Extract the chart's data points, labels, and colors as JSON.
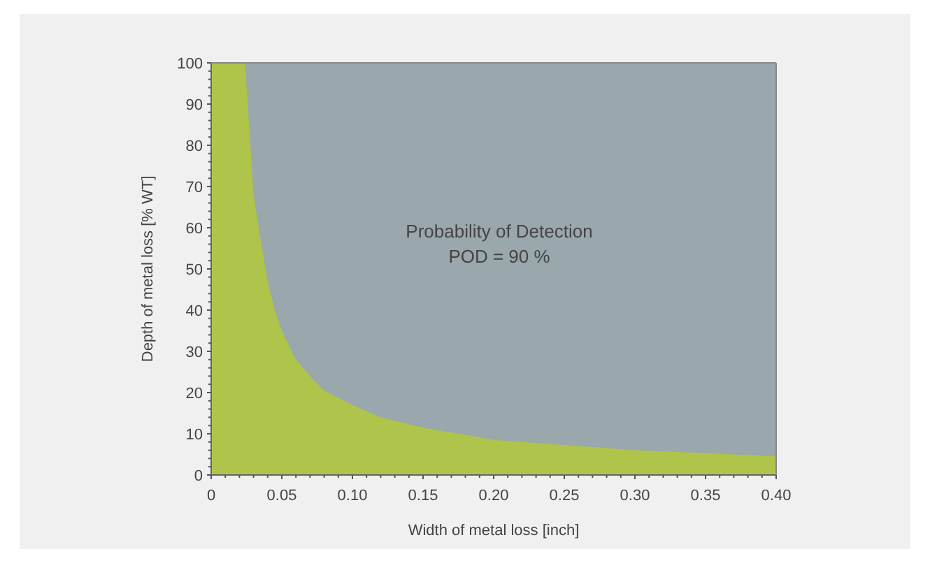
{
  "chart_data": {
    "type": "area",
    "xlabel": "Width of metal loss [inch]",
    "ylabel": "Depth of metal loss [% WT]",
    "annotations": [
      "Probability of Detection",
      "POD = 90 %"
    ],
    "x": [
      0,
      0.024,
      0.03,
      0.035,
      0.04,
      0.045,
      0.05,
      0.06,
      0.07,
      0.08,
      0.1,
      0.12,
      0.15,
      0.175,
      0.2,
      0.25,
      0.3,
      0.35,
      0.4
    ],
    "series": [
      {
        "color": "#afc44a",
        "values": [
          100,
          100,
          68,
          57,
          47,
          40,
          35,
          28,
          24,
          20.5,
          17,
          14,
          11.5,
          10,
          8.5,
          7.3,
          6,
          5.3,
          4.5
        ]
      }
    ],
    "xlim": [
      0,
      0.4
    ],
    "ylim": [
      0,
      100
    ],
    "xticks": [
      0,
      {
        "value": 0.01,
        "label": null
      },
      {
        "value": 0.02,
        "label": null
      },
      {
        "value": 0.03,
        "label": null
      },
      {
        "value": 0.04,
        "label": null
      },
      {
        "value": 0.05,
        "label": "0.05"
      },
      {
        "value": 0.06,
        "label": null
      },
      {
        "value": 0.07,
        "label": null
      },
      {
        "value": 0.08,
        "label": null
      },
      {
        "value": 0.09,
        "label": null
      },
      {
        "value": 0.1,
        "label": "0.10"
      },
      {
        "value": 0.11,
        "label": null
      },
      {
        "value": 0.12,
        "label": null
      },
      {
        "value": 0.13,
        "label": null
      },
      {
        "value": 0.14,
        "label": null
      },
      {
        "value": 0.15,
        "label": "0.15"
      },
      {
        "value": 0.16,
        "label": null
      },
      {
        "value": 0.17,
        "label": null
      },
      {
        "value": 0.18,
        "label": null
      },
      {
        "value": 0.19,
        "label": null
      },
      {
        "value": 0.2,
        "label": "0.20"
      },
      {
        "value": 0.21,
        "label": null
      },
      {
        "value": 0.22,
        "label": null
      },
      {
        "value": 0.23,
        "label": null
      },
      {
        "value": 0.24,
        "label": null
      },
      {
        "value": 0.25,
        "label": "0.25"
      },
      {
        "value": 0.26,
        "label": null
      },
      {
        "value": 0.27,
        "label": null
      },
      {
        "value": 0.28,
        "label": null
      },
      {
        "value": 0.29,
        "label": null
      },
      {
        "value": 0.3,
        "label": "0.30"
      },
      {
        "value": 0.31,
        "label": null
      },
      {
        "value": 0.32,
        "label": null
      },
      {
        "value": 0.33,
        "label": null
      },
      {
        "value": 0.34,
        "label": null
      },
      {
        "value": 0.35,
        "label": "0.35"
      },
      {
        "value": 0.36,
        "label": null
      },
      {
        "value": 0.37,
        "label": null
      },
      {
        "value": 0.38,
        "label": null
      },
      {
        "value": 0.39,
        "label": null
      },
      {
        "value": 0.4,
        "label": "0.40"
      }
    ],
    "yticks": [
      0,
      {
        "value": 2,
        "label": null
      },
      {
        "value": 4,
        "label": null
      },
      {
        "value": 6,
        "label": null
      },
      {
        "value": 8,
        "label": null
      },
      10,
      {
        "value": 12,
        "label": null
      },
      {
        "value": 14,
        "label": null
      },
      {
        "value": 16,
        "label": null
      },
      {
        "value": 18,
        "label": null
      },
      20,
      {
        "value": 22,
        "label": null
      },
      {
        "value": 24,
        "label": null
      },
      {
        "value": 26,
        "label": null
      },
      {
        "value": 28,
        "label": null
      },
      30,
      {
        "value": 32,
        "label": null
      },
      {
        "value": 34,
        "label": null
      },
      {
        "value": 36,
        "label": null
      },
      {
        "value": 38,
        "label": null
      },
      40,
      {
        "value": 42,
        "label": null
      },
      {
        "value": 44,
        "label": null
      },
      {
        "value": 46,
        "label": null
      },
      {
        "value": 48,
        "label": null
      },
      50,
      {
        "value": 52,
        "label": null
      },
      {
        "value": 54,
        "label": null
      },
      {
        "value": 56,
        "label": null
      },
      {
        "value": 58,
        "label": null
      },
      60,
      {
        "value": 62,
        "label": null
      },
      {
        "value": 64,
        "label": null
      },
      {
        "value": 66,
        "label": null
      },
      {
        "value": 68,
        "label": null
      },
      70,
      {
        "value": 72,
        "label": null
      },
      {
        "value": 74,
        "label": null
      },
      {
        "value": 76,
        "label": null
      },
      {
        "value": 78,
        "label": null
      },
      80,
      {
        "value": 82,
        "label": null
      },
      {
        "value": 84,
        "label": null
      },
      {
        "value": 86,
        "label": null
      },
      {
        "value": 88,
        "label": null
      },
      90,
      {
        "value": 92,
        "label": null
      },
      {
        "value": 94,
        "label": null
      },
      {
        "value": 96,
        "label": null
      },
      {
        "value": 98,
        "label": null
      },
      100
    ]
  }
}
